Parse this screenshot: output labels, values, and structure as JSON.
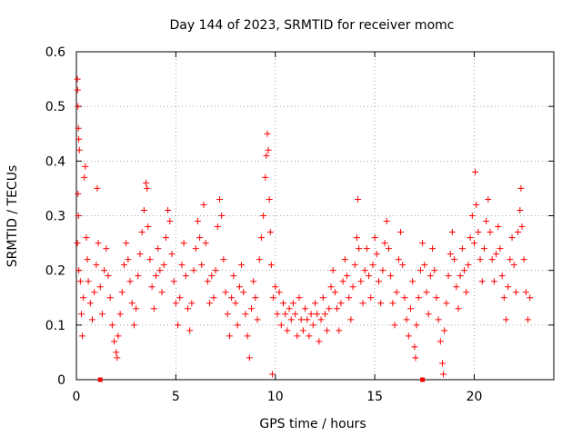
{
  "chart_data": {
    "type": "scatter",
    "title": "Day 144 of 2023, SRMTID for receiver momc",
    "xlabel": "GPS time / hours",
    "ylabel": "SRMTID / TECUs",
    "xlim": [
      0,
      24
    ],
    "ylim": [
      0,
      0.6
    ],
    "x_ticks": [
      0,
      5,
      10,
      15,
      20
    ],
    "y_ticks": [
      0,
      0.1,
      0.2,
      0.3,
      0.4,
      0.5,
      0.6
    ],
    "x_tick_labels": [
      "0",
      "5",
      "10",
      "15",
      "20"
    ],
    "y_tick_labels": [
      "0",
      "0.1",
      "0.2",
      "0.3",
      "0.4",
      "0.5",
      "0.6"
    ],
    "grid": true,
    "marker": "+",
    "color": "#ff0000",
    "gap_markers_x": [
      1.2,
      17.4
    ],
    "series": [
      {
        "name": "SRMTID",
        "points": [
          [
            0.05,
            0.55
          ],
          [
            0.06,
            0.53
          ],
          [
            0.08,
            0.5
          ],
          [
            0.1,
            0.46
          ],
          [
            0.12,
            0.44
          ],
          [
            0.15,
            0.42
          ],
          [
            0.08,
            0.34
          ],
          [
            0.1,
            0.3
          ],
          [
            0.05,
            0.25
          ],
          [
            0.12,
            0.2
          ],
          [
            0.2,
            0.18
          ],
          [
            0.25,
            0.12
          ],
          [
            0.3,
            0.08
          ],
          [
            0.35,
            0.15
          ],
          [
            0.4,
            0.37
          ],
          [
            0.45,
            0.39
          ],
          [
            0.5,
            0.26
          ],
          [
            0.55,
            0.22
          ],
          [
            0.6,
            0.18
          ],
          [
            0.7,
            0.14
          ],
          [
            0.8,
            0.11
          ],
          [
            0.9,
            0.16
          ],
          [
            1.0,
            0.21
          ],
          [
            1.1,
            0.25
          ],
          [
            1.05,
            0.35
          ],
          [
            1.2,
            0.17
          ],
          [
            1.3,
            0.12
          ],
          [
            1.4,
            0.2
          ],
          [
            1.5,
            0.24
          ],
          [
            1.6,
            0.19
          ],
          [
            1.7,
            0.15
          ],
          [
            1.8,
            0.1
          ],
          [
            1.9,
            0.07
          ],
          [
            2.0,
            0.05
          ],
          [
            2.05,
            0.04
          ],
          [
            2.1,
            0.08
          ],
          [
            2.2,
            0.12
          ],
          [
            2.3,
            0.16
          ],
          [
            2.4,
            0.21
          ],
          [
            2.5,
            0.25
          ],
          [
            2.6,
            0.22
          ],
          [
            2.7,
            0.18
          ],
          [
            2.8,
            0.14
          ],
          [
            2.9,
            0.1
          ],
          [
            3.0,
            0.13
          ],
          [
            3.1,
            0.19
          ],
          [
            3.2,
            0.23
          ],
          [
            3.3,
            0.27
          ],
          [
            3.4,
            0.31
          ],
          [
            3.5,
            0.36
          ],
          [
            3.55,
            0.35
          ],
          [
            3.6,
            0.28
          ],
          [
            3.7,
            0.22
          ],
          [
            3.8,
            0.17
          ],
          [
            3.9,
            0.13
          ],
          [
            4.0,
            0.19
          ],
          [
            4.1,
            0.24
          ],
          [
            4.2,
            0.2
          ],
          [
            4.3,
            0.16
          ],
          [
            4.4,
            0.21
          ],
          [
            4.5,
            0.26
          ],
          [
            4.6,
            0.31
          ],
          [
            4.7,
            0.29
          ],
          [
            4.8,
            0.23
          ],
          [
            4.9,
            0.18
          ],
          [
            5.0,
            0.14
          ],
          [
            5.1,
            0.1
          ],
          [
            5.2,
            0.15
          ],
          [
            5.3,
            0.21
          ],
          [
            5.4,
            0.25
          ],
          [
            5.5,
            0.19
          ],
          [
            5.6,
            0.13
          ],
          [
            5.7,
            0.09
          ],
          [
            5.8,
            0.14
          ],
          [
            5.9,
            0.2
          ],
          [
            6.0,
            0.24
          ],
          [
            6.1,
            0.29
          ],
          [
            6.2,
            0.26
          ],
          [
            6.3,
            0.21
          ],
          [
            6.4,
            0.32
          ],
          [
            6.5,
            0.25
          ],
          [
            6.6,
            0.18
          ],
          [
            6.7,
            0.14
          ],
          [
            6.8,
            0.19
          ],
          [
            6.9,
            0.15
          ],
          [
            7.0,
            0.2
          ],
          [
            7.1,
            0.28
          ],
          [
            7.2,
            0.33
          ],
          [
            7.3,
            0.3
          ],
          [
            7.4,
            0.22
          ],
          [
            7.5,
            0.16
          ],
          [
            7.6,
            0.12
          ],
          [
            7.7,
            0.08
          ],
          [
            7.8,
            0.15
          ],
          [
            7.9,
            0.19
          ],
          [
            8.0,
            0.14
          ],
          [
            8.1,
            0.1
          ],
          [
            8.2,
            0.17
          ],
          [
            8.3,
            0.21
          ],
          [
            8.4,
            0.16
          ],
          [
            8.5,
            0.12
          ],
          [
            8.6,
            0.08
          ],
          [
            8.7,
            0.04
          ],
          [
            8.8,
            0.13
          ],
          [
            8.9,
            0.18
          ],
          [
            9.0,
            0.15
          ],
          [
            9.1,
            0.11
          ],
          [
            9.2,
            0.22
          ],
          [
            9.3,
            0.26
          ],
          [
            9.4,
            0.3
          ],
          [
            9.5,
            0.37
          ],
          [
            9.55,
            0.41
          ],
          [
            9.6,
            0.45
          ],
          [
            9.65,
            0.42
          ],
          [
            9.7,
            0.33
          ],
          [
            9.75,
            0.27
          ],
          [
            9.8,
            0.21
          ],
          [
            9.85,
            0.01
          ],
          [
            9.9,
            0.15
          ],
          [
            10.0,
            0.17
          ],
          [
            10.1,
            0.12
          ],
          [
            10.2,
            0.16
          ],
          [
            10.3,
            0.1
          ],
          [
            10.4,
            0.14
          ],
          [
            10.5,
            0.12
          ],
          [
            10.6,
            0.09
          ],
          [
            10.7,
            0.13
          ],
          [
            10.8,
            0.11
          ],
          [
            10.9,
            0.14
          ],
          [
            11.0,
            0.12
          ],
          [
            11.1,
            0.08
          ],
          [
            11.2,
            0.15
          ],
          [
            11.3,
            0.11
          ],
          [
            11.4,
            0.09
          ],
          [
            11.5,
            0.13
          ],
          [
            11.6,
            0.11
          ],
          [
            11.7,
            0.08
          ],
          [
            11.8,
            0.12
          ],
          [
            11.9,
            0.1
          ],
          [
            12.0,
            0.14
          ],
          [
            12.1,
            0.12
          ],
          [
            12.2,
            0.07
          ],
          [
            12.3,
            0.11
          ],
          [
            12.4,
            0.15
          ],
          [
            12.5,
            0.12
          ],
          [
            12.6,
            0.09
          ],
          [
            12.7,
            0.13
          ],
          [
            12.8,
            0.17
          ],
          [
            12.9,
            0.2
          ],
          [
            13.0,
            0.16
          ],
          [
            13.1,
            0.13
          ],
          [
            13.2,
            0.09
          ],
          [
            13.3,
            0.14
          ],
          [
            13.4,
            0.18
          ],
          [
            13.5,
            0.22
          ],
          [
            13.6,
            0.19
          ],
          [
            13.7,
            0.15
          ],
          [
            13.8,
            0.11
          ],
          [
            13.9,
            0.17
          ],
          [
            14.0,
            0.21
          ],
          [
            14.1,
            0.26
          ],
          [
            14.15,
            0.33
          ],
          [
            14.2,
            0.24
          ],
          [
            14.3,
            0.18
          ],
          [
            14.4,
            0.14
          ],
          [
            14.5,
            0.2
          ],
          [
            14.6,
            0.24
          ],
          [
            14.7,
            0.19
          ],
          [
            14.8,
            0.15
          ],
          [
            14.9,
            0.21
          ],
          [
            15.0,
            0.26
          ],
          [
            15.1,
            0.23
          ],
          [
            15.2,
            0.18
          ],
          [
            15.3,
            0.14
          ],
          [
            15.4,
            0.2
          ],
          [
            15.5,
            0.25
          ],
          [
            15.6,
            0.29
          ],
          [
            15.7,
            0.24
          ],
          [
            15.8,
            0.19
          ],
          [
            15.9,
            0.14
          ],
          [
            16.0,
            0.1
          ],
          [
            16.1,
            0.16
          ],
          [
            16.2,
            0.22
          ],
          [
            16.3,
            0.27
          ],
          [
            16.4,
            0.21
          ],
          [
            16.5,
            0.15
          ],
          [
            16.6,
            0.11
          ],
          [
            16.7,
            0.08
          ],
          [
            16.8,
            0.13
          ],
          [
            16.9,
            0.18
          ],
          [
            17.0,
            0.06
          ],
          [
            17.05,
            0.04
          ],
          [
            17.1,
            0.1
          ],
          [
            17.2,
            0.15
          ],
          [
            17.3,
            0.2
          ],
          [
            17.4,
            0.25
          ],
          [
            17.5,
            0.21
          ],
          [
            17.6,
            0.16
          ],
          [
            17.7,
            0.12
          ],
          [
            17.8,
            0.19
          ],
          [
            17.9,
            0.24
          ],
          [
            18.0,
            0.2
          ],
          [
            18.1,
            0.15
          ],
          [
            18.2,
            0.11
          ],
          [
            18.3,
            0.07
          ],
          [
            18.4,
            0.03
          ],
          [
            18.45,
            0.01
          ],
          [
            18.5,
            0.09
          ],
          [
            18.6,
            0.14
          ],
          [
            18.7,
            0.19
          ],
          [
            18.8,
            0.23
          ],
          [
            18.9,
            0.27
          ],
          [
            19.0,
            0.22
          ],
          [
            19.1,
            0.17
          ],
          [
            19.2,
            0.13
          ],
          [
            19.3,
            0.19
          ],
          [
            19.4,
            0.24
          ],
          [
            19.5,
            0.2
          ],
          [
            19.6,
            0.16
          ],
          [
            19.7,
            0.21
          ],
          [
            19.8,
            0.26
          ],
          [
            19.9,
            0.3
          ],
          [
            20.0,
            0.25
          ],
          [
            20.05,
            0.38
          ],
          [
            20.1,
            0.32
          ],
          [
            20.2,
            0.27
          ],
          [
            20.3,
            0.22
          ],
          [
            20.4,
            0.18
          ],
          [
            20.5,
            0.24
          ],
          [
            20.6,
            0.29
          ],
          [
            20.7,
            0.33
          ],
          [
            20.8,
            0.27
          ],
          [
            20.9,
            0.22
          ],
          [
            21.0,
            0.18
          ],
          [
            21.1,
            0.23
          ],
          [
            21.2,
            0.28
          ],
          [
            21.3,
            0.24
          ],
          [
            21.4,
            0.19
          ],
          [
            21.5,
            0.15
          ],
          [
            21.6,
            0.11
          ],
          [
            21.7,
            0.17
          ],
          [
            21.8,
            0.22
          ],
          [
            21.9,
            0.26
          ],
          [
            22.0,
            0.21
          ],
          [
            22.1,
            0.16
          ],
          [
            22.2,
            0.27
          ],
          [
            22.3,
            0.31
          ],
          [
            22.35,
            0.35
          ],
          [
            22.4,
            0.28
          ],
          [
            22.5,
            0.22
          ],
          [
            22.6,
            0.16
          ],
          [
            22.7,
            0.11
          ],
          [
            22.8,
            0.15
          ]
        ]
      }
    ]
  }
}
